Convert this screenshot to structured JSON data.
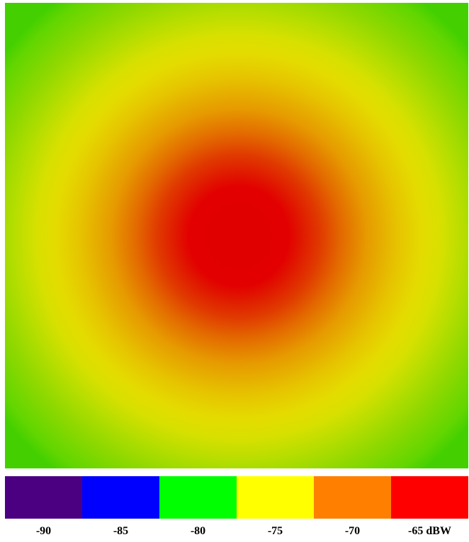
{
  "chart_data": {
    "type": "heatmap",
    "unit": "dBW",
    "legend_bins": [
      {
        "label": "-90",
        "color": "#4b0082"
      },
      {
        "label": "-85",
        "color": "#0000ff"
      },
      {
        "label": "-80",
        "color": "#00ff00"
      },
      {
        "label": "-75",
        "color": "#ffff00"
      },
      {
        "label": "-70",
        "color": "#ff8000"
      },
      {
        "label": "-65 dBW",
        "color": "#ff0000"
      }
    ],
    "field": {
      "pattern": "radial",
      "peak_value_dBW": -65,
      "edge_value_dBW": -80
    }
  }
}
